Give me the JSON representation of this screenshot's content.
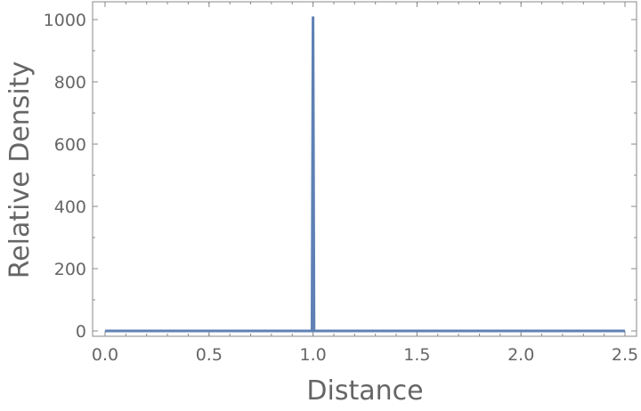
{
  "chart_data": {
    "type": "line",
    "title": "",
    "xlabel": "Distance",
    "ylabel": "Relative Density",
    "xlim": [
      -0.06,
      2.52
    ],
    "ylim": [
      -18,
      1060
    ],
    "xticks": [
      "0.0",
      "0.5",
      "1.0",
      "1.5",
      "2.0",
      "2.5"
    ],
    "xtick_values": [
      0,
      0.5,
      1.0,
      1.5,
      2.0,
      2.5
    ],
    "yticks": [
      "0",
      "200",
      "400",
      "600",
      "800",
      "1000"
    ],
    "ytick_values": [
      0,
      200,
      400,
      600,
      800,
      1000
    ],
    "grid": false,
    "series": [
      {
        "color": "#5e81b5",
        "x": [
          0.0,
          0.995,
          1.0,
          1.005,
          2.5
        ],
        "y": [
          0,
          0,
          1010,
          0,
          0
        ]
      }
    ]
  }
}
